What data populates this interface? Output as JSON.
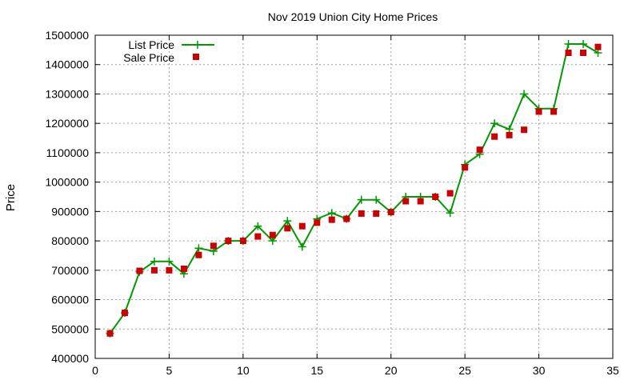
{
  "chart_data": {
    "type": "line",
    "title": "Nov 2019 Union City Home Prices",
    "xlabel": "",
    "ylabel": "Price",
    "xlim": [
      0,
      35
    ],
    "ylim": [
      400000,
      1500000
    ],
    "x_ticks": [
      0,
      5,
      10,
      15,
      20,
      25,
      30,
      35
    ],
    "y_ticks": [
      400000,
      500000,
      600000,
      700000,
      800000,
      900000,
      1000000,
      1100000,
      1200000,
      1300000,
      1400000,
      1500000
    ],
    "grid": true,
    "legend_position": "top-left",
    "x": [
      1,
      2,
      3,
      4,
      5,
      6,
      7,
      8,
      9,
      10,
      11,
      12,
      13,
      14,
      15,
      16,
      17,
      18,
      19,
      20,
      21,
      22,
      23,
      24,
      25,
      26,
      27,
      28,
      29,
      30,
      31,
      32,
      33,
      34
    ],
    "series": [
      {
        "name": "List Price",
        "style": "line-with-plus-markers",
        "color": "#009900",
        "values": [
          485000,
          555000,
          695000,
          730000,
          730000,
          688000,
          775000,
          765000,
          800000,
          800000,
          850000,
          800000,
          868000,
          780000,
          875000,
          895000,
          875000,
          940000,
          940000,
          898000,
          950000,
          950000,
          950000,
          895000,
          1060000,
          1095000,
          1200000,
          1180000,
          1300000,
          1250000,
          1250000,
          1470000,
          1470000,
          1440000
        ]
      },
      {
        "name": "Sale Price",
        "style": "square-markers",
        "color": "#cc0000",
        "values": [
          485000,
          555000,
          698000,
          700000,
          700000,
          705000,
          752000,
          783000,
          800000,
          800000,
          815000,
          820000,
          843000,
          850000,
          862000,
          872000,
          875000,
          893000,
          893000,
          898000,
          935000,
          935000,
          950000,
          962000,
          1050000,
          1110000,
          1155000,
          1160000,
          1178000,
          1240000,
          1240000,
          1440000,
          1440000,
          1460000
        ]
      }
    ]
  }
}
